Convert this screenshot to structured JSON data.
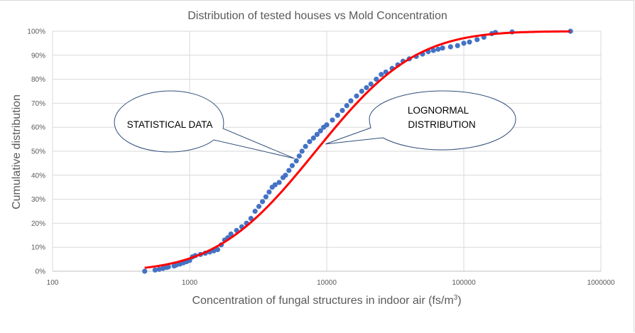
{
  "chart_data": {
    "type": "scatter",
    "title": "Distribution of tested houses vs Mold Concentration",
    "xlabel": "Concentration of fungal structures in indoor air (fs/m",
    "xlabel_superscript": "3",
    "xlabel_suffix": ")",
    "ylabel": "Cumulative distribution",
    "xscale": "log",
    "xlim": [
      100,
      1000000
    ],
    "ylim": [
      0,
      1
    ],
    "grid": true,
    "x_ticks": [
      "100",
      "1000",
      "10000",
      "100000",
      "1000000"
    ],
    "x_tick_values": [
      100,
      1000,
      10000,
      100000,
      1000000
    ],
    "y_ticks": [
      "0%",
      "10%",
      "20%",
      "30%",
      "40%",
      "50%",
      "60%",
      "70%",
      "80%",
      "90%",
      "100%"
    ],
    "y_tick_values": [
      0,
      0.1,
      0.2,
      0.3,
      0.4,
      0.5,
      0.6,
      0.7,
      0.8,
      0.9,
      1.0
    ],
    "series": [
      {
        "name": "Statistical data",
        "kind": "scatter",
        "color": "#4472c4",
        "points": [
          [
            470,
            0.0
          ],
          [
            560,
            0.005
          ],
          [
            600,
            0.008
          ],
          [
            640,
            0.012
          ],
          [
            680,
            0.016
          ],
          [
            700,
            0.018
          ],
          [
            770,
            0.022
          ],
          [
            800,
            0.026
          ],
          [
            850,
            0.03
          ],
          [
            900,
            0.035
          ],
          [
            950,
            0.04
          ],
          [
            1000,
            0.045
          ],
          [
            1050,
            0.06
          ],
          [
            1100,
            0.065
          ],
          [
            1200,
            0.07
          ],
          [
            1300,
            0.075
          ],
          [
            1400,
            0.08
          ],
          [
            1500,
            0.085
          ],
          [
            1600,
            0.09
          ],
          [
            1700,
            0.11
          ],
          [
            1800,
            0.13
          ],
          [
            1900,
            0.14
          ],
          [
            2000,
            0.155
          ],
          [
            2200,
            0.17
          ],
          [
            2400,
            0.185
          ],
          [
            2600,
            0.2
          ],
          [
            2800,
            0.22
          ],
          [
            3000,
            0.25
          ],
          [
            3200,
            0.27
          ],
          [
            3400,
            0.29
          ],
          [
            3600,
            0.31
          ],
          [
            3800,
            0.33
          ],
          [
            4000,
            0.35
          ],
          [
            4200,
            0.36
          ],
          [
            4500,
            0.37
          ],
          [
            4800,
            0.39
          ],
          [
            5000,
            0.4
          ],
          [
            5300,
            0.42
          ],
          [
            5600,
            0.44
          ],
          [
            6000,
            0.46
          ],
          [
            6300,
            0.48
          ],
          [
            6600,
            0.5
          ],
          [
            7000,
            0.52
          ],
          [
            7500,
            0.54
          ],
          [
            8000,
            0.555
          ],
          [
            8500,
            0.57
          ],
          [
            9000,
            0.585
          ],
          [
            9500,
            0.6
          ],
          [
            10000,
            0.61
          ],
          [
            11000,
            0.63
          ],
          [
            12000,
            0.65
          ],
          [
            13000,
            0.67
          ],
          [
            14000,
            0.69
          ],
          [
            15000,
            0.71
          ],
          [
            16500,
            0.73
          ],
          [
            18000,
            0.75
          ],
          [
            19500,
            0.765
          ],
          [
            21000,
            0.78
          ],
          [
            23000,
            0.8
          ],
          [
            25000,
            0.82
          ],
          [
            27000,
            0.83
          ],
          [
            30000,
            0.845
          ],
          [
            33000,
            0.86
          ],
          [
            36000,
            0.875
          ],
          [
            40000,
            0.885
          ],
          [
            45000,
            0.895
          ],
          [
            50000,
            0.905
          ],
          [
            55000,
            0.915
          ],
          [
            60000,
            0.92
          ],
          [
            65000,
            0.925
          ],
          [
            70000,
            0.93
          ],
          [
            80000,
            0.935
          ],
          [
            90000,
            0.94
          ],
          [
            100000,
            0.95
          ],
          [
            110000,
            0.955
          ],
          [
            125000,
            0.965
          ],
          [
            140000,
            0.975
          ],
          [
            160000,
            0.99
          ],
          [
            170000,
            0.995
          ],
          [
            225000,
            0.997
          ],
          [
            600000,
            1.0
          ]
        ]
      },
      {
        "name": "Lognormal distribution",
        "kind": "line",
        "color": "#ff0000",
        "median": 8300,
        "log10_sigma": 0.57,
        "x_range": [
          470,
          600000
        ]
      }
    ],
    "annotations": [
      {
        "text": "STATISTICAL DATA",
        "target": [
          5800,
          0.47
        ]
      },
      {
        "text": "LOGNORMAL DISTRIBUTION",
        "line1": "LOGNORMAL",
        "line2": "DISTRIBUTION",
        "target": [
          9800,
          0.53
        ]
      }
    ]
  }
}
